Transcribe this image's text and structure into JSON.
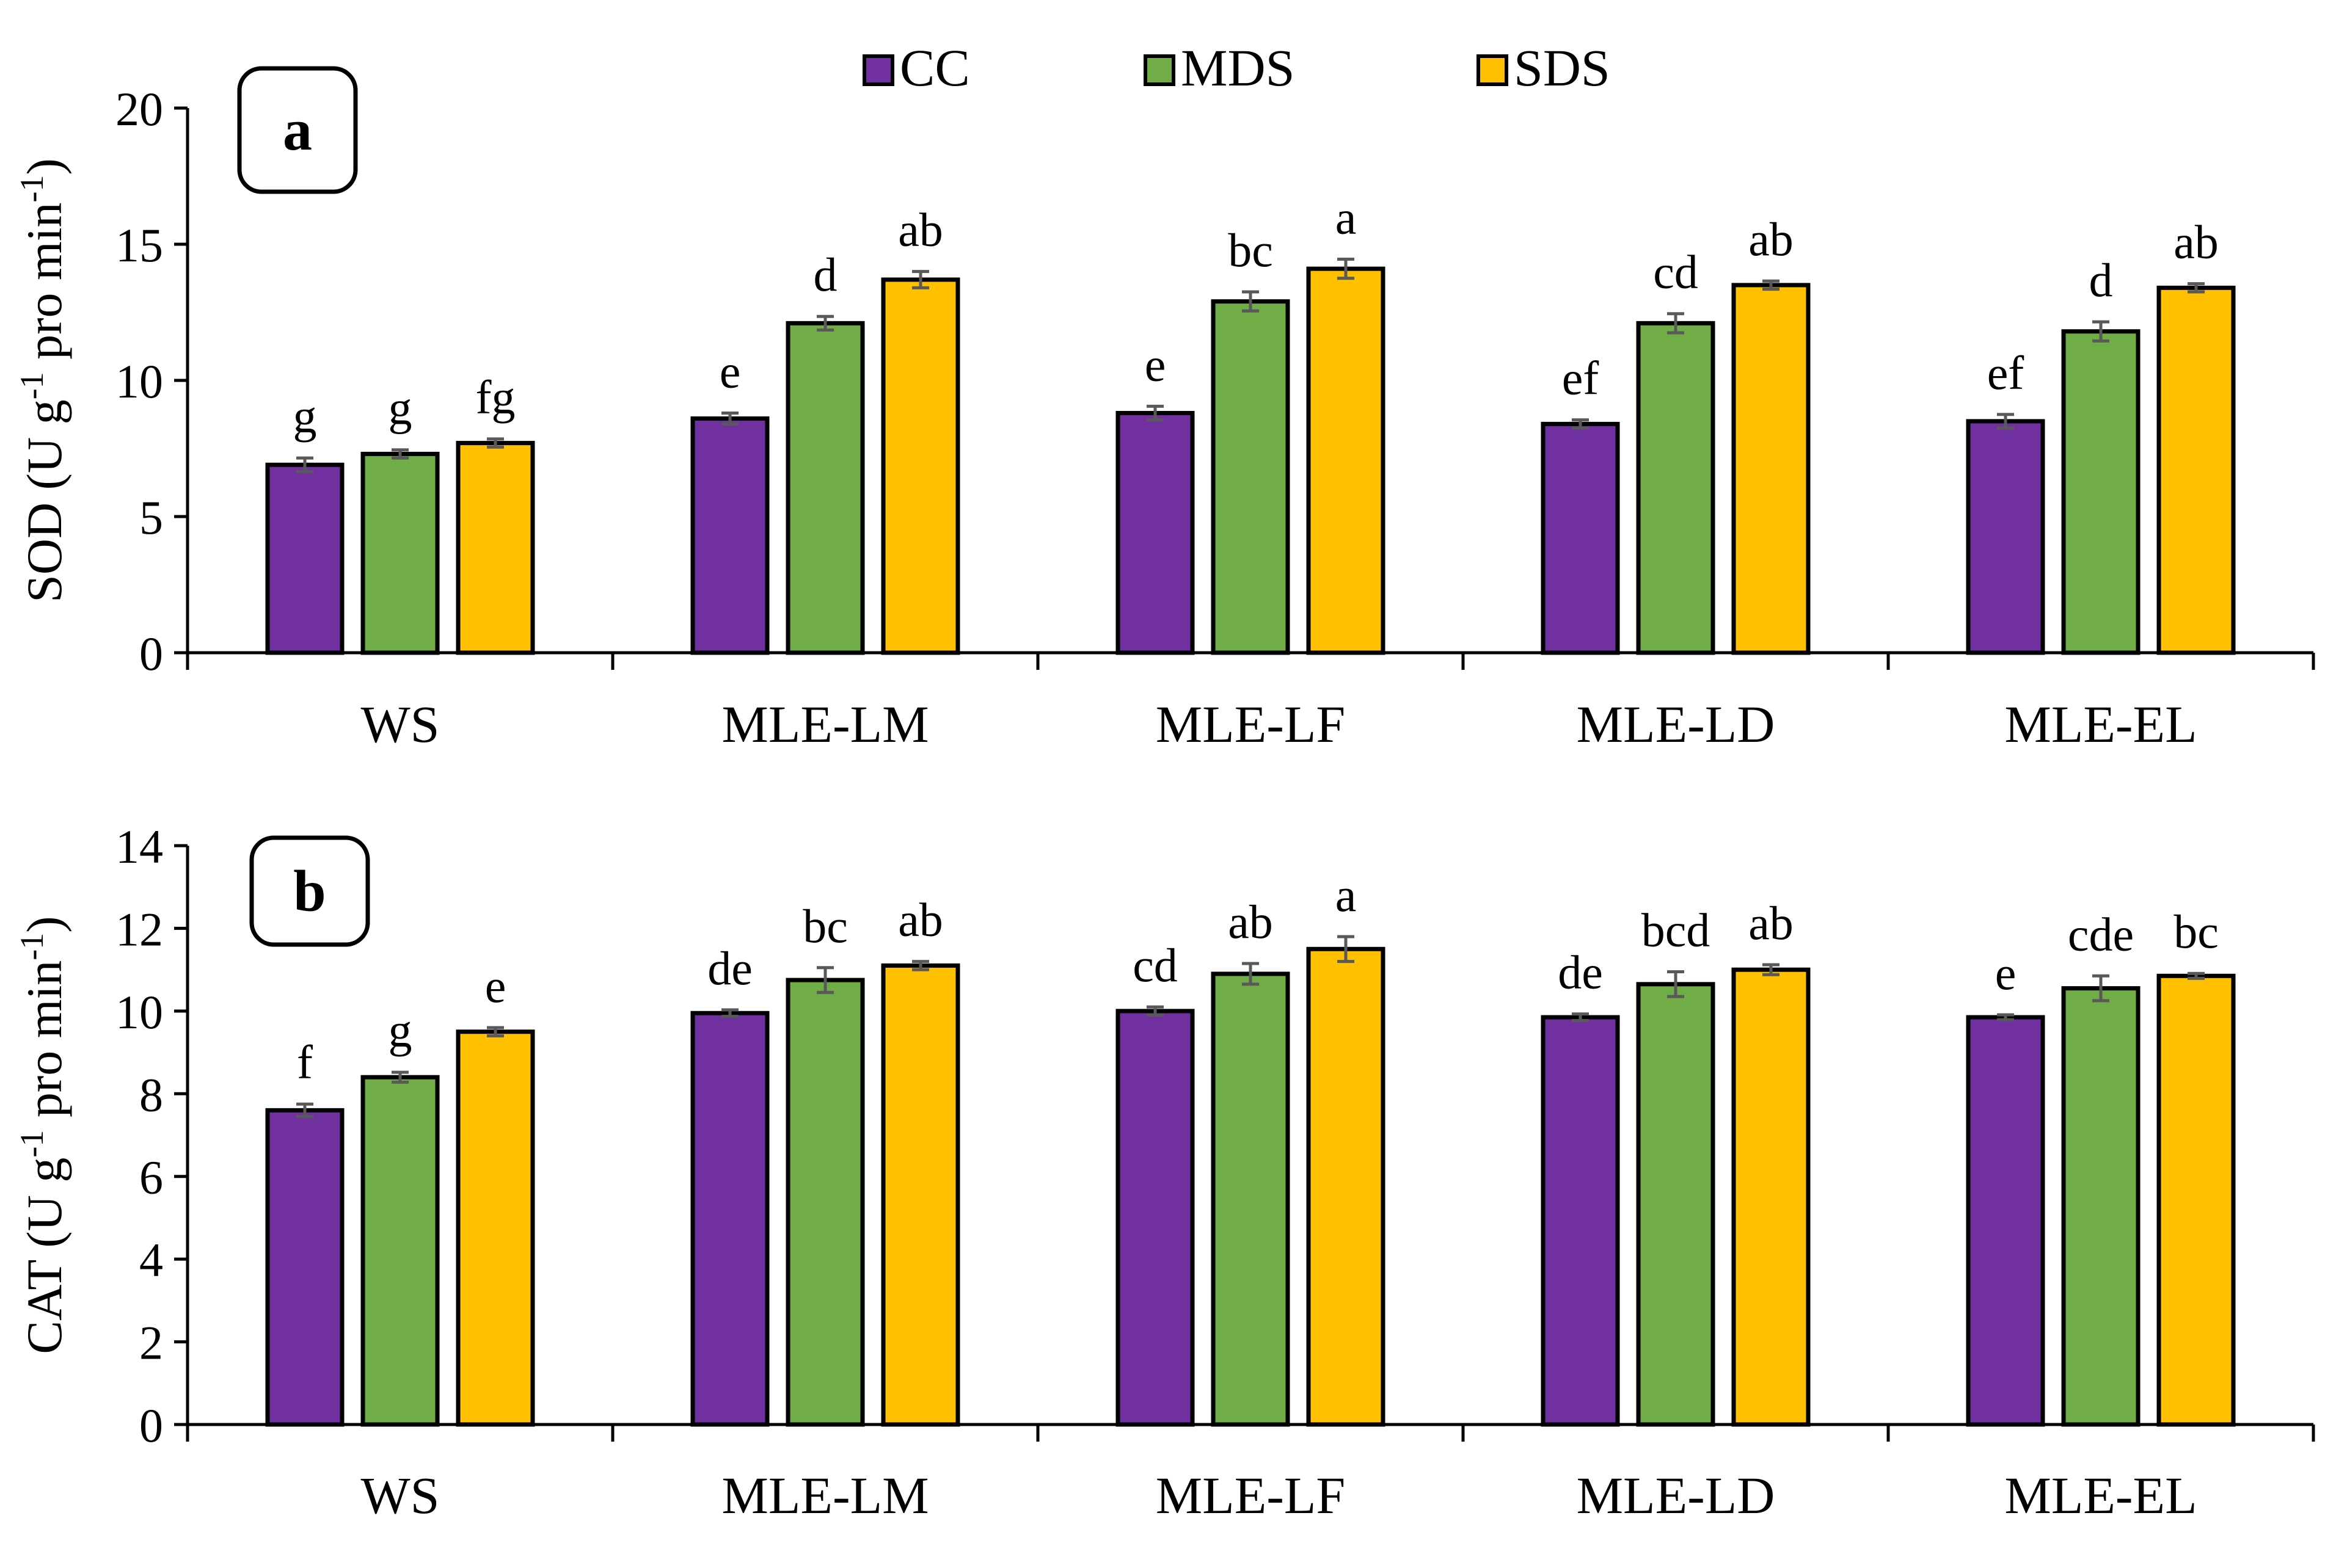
{
  "legend": {
    "placement": "top-center",
    "entries": [
      {
        "name": "CC",
        "color": "#7030A0"
      },
      {
        "name": "MDS",
        "color": "#70AD47"
      },
      {
        "name": "SDS",
        "color": "#FFC000"
      }
    ]
  },
  "chart_data": [
    {
      "type": "bar",
      "panel_label": "a",
      "ylabel_main": "SOD (U g",
      "ylabel_sup1": "-1",
      "ylabel_mid": " pro min",
      "ylabel_sup2": "-1",
      "ylabel_end": ")",
      "ylim": [
        0,
        20
      ],
      "yticks": [
        0,
        5,
        10,
        15,
        20
      ],
      "categories": [
        "WS",
        "MLE-LM",
        "MLE-LF",
        "MLE-LD",
        "MLE-EL"
      ],
      "series": [
        {
          "name": "CC",
          "values": [
            6.9,
            8.6,
            8.8,
            8.4,
            8.5
          ],
          "errors": [
            0.25,
            0.2,
            0.25,
            0.15,
            0.25
          ],
          "labels": [
            "g",
            "e",
            "e",
            "ef",
            "ef"
          ]
        },
        {
          "name": "MDS",
          "values": [
            7.3,
            12.1,
            12.9,
            12.1,
            11.8
          ],
          "errors": [
            0.15,
            0.25,
            0.35,
            0.35,
            0.35
          ],
          "labels": [
            "g",
            "d",
            "bc",
            "cd",
            "d"
          ]
        },
        {
          "name": "SDS",
          "values": [
            7.7,
            13.7,
            14.1,
            13.5,
            13.4
          ],
          "errors": [
            0.15,
            0.3,
            0.35,
            0.15,
            0.15
          ],
          "labels": [
            "fg",
            "ab",
            "a",
            "ab",
            "ab"
          ]
        }
      ]
    },
    {
      "type": "bar",
      "panel_label": "b",
      "ylabel_main": "CAT (U g",
      "ylabel_sup1": "-1",
      "ylabel_mid": " pro min",
      "ylabel_sup2": "-1",
      "ylabel_end": ")",
      "ylim": [
        0,
        14
      ],
      "yticks": [
        0,
        2,
        4,
        6,
        8,
        10,
        12,
        14
      ],
      "categories": [
        "WS",
        "MLE-LM",
        "MLE-LF",
        "MLE-LD",
        "MLE-EL"
      ],
      "series": [
        {
          "name": "CC",
          "values": [
            7.6,
            9.95,
            10.0,
            9.85,
            9.85
          ],
          "errors": [
            0.15,
            0.08,
            0.1,
            0.08,
            0.06
          ],
          "labels": [
            "f",
            "de",
            "cd",
            "de",
            "e"
          ]
        },
        {
          "name": "MDS",
          "values": [
            8.4,
            10.75,
            10.9,
            10.65,
            10.55
          ],
          "errors": [
            0.12,
            0.3,
            0.25,
            0.3,
            0.3
          ],
          "labels": [
            "g",
            "bc",
            "ab",
            "bcd",
            "cde"
          ]
        },
        {
          "name": "SDS",
          "values": [
            9.5,
            11.1,
            11.5,
            11.0,
            10.85
          ],
          "errors": [
            0.1,
            0.1,
            0.3,
            0.12,
            0.06
          ],
          "labels": [
            "e",
            "ab",
            "a",
            "ab",
            "bc"
          ]
        }
      ]
    }
  ]
}
